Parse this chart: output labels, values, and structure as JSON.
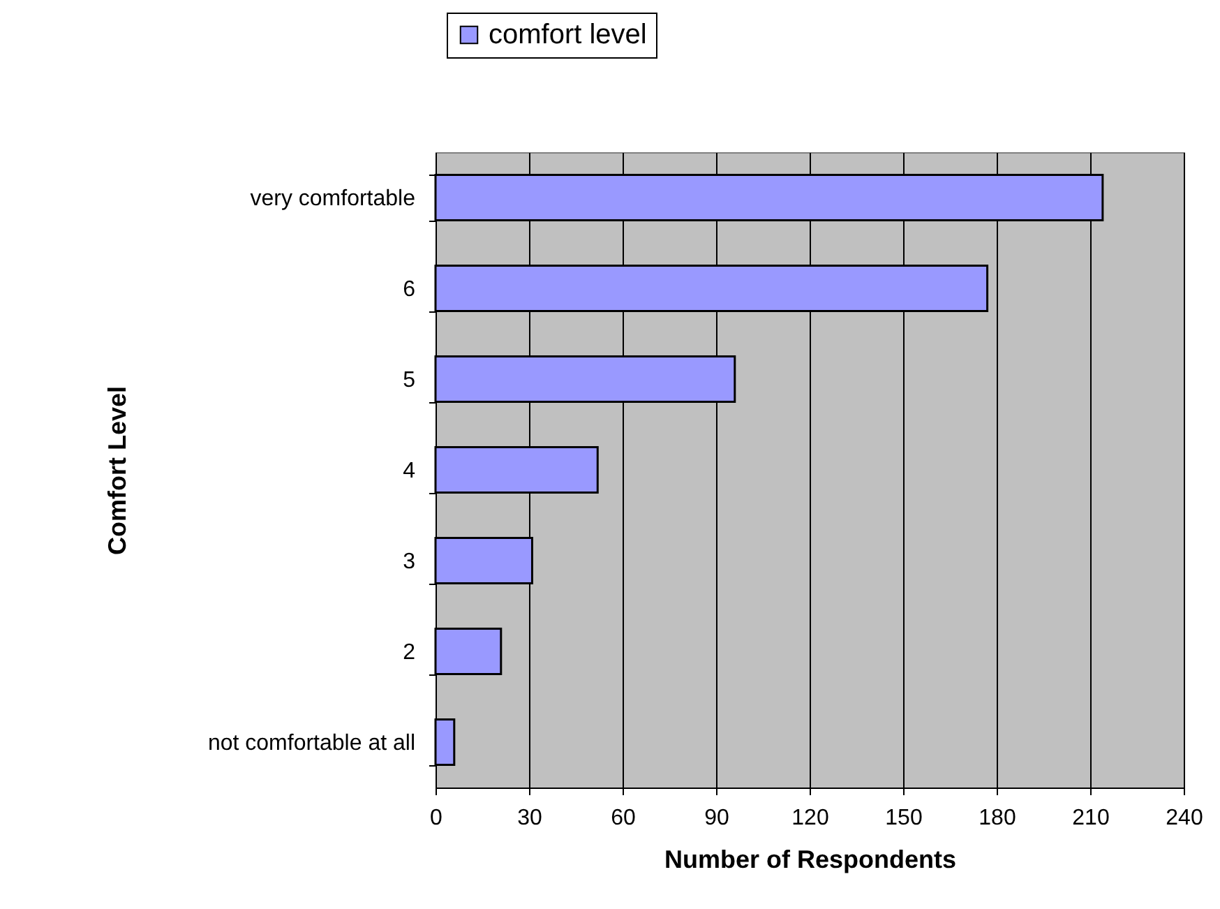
{
  "chart_data": {
    "type": "bar",
    "orientation": "horizontal",
    "xlabel": "Number of Respondents",
    "ylabel": "Comfort Level",
    "categories": [
      "very comfortable",
      "6",
      "5",
      "4",
      "3",
      "2",
      "not comfortable at all"
    ],
    "series": [
      {
        "name": "comfort level",
        "color": "#9999ff",
        "values": [
          214,
          177,
          96,
          52,
          31,
          21,
          6
        ]
      }
    ],
    "xlim": [
      0,
      240
    ],
    "xticks": [
      0,
      30,
      60,
      90,
      120,
      150,
      180,
      210,
      240
    ],
    "grid": "x",
    "legend": "top"
  }
}
